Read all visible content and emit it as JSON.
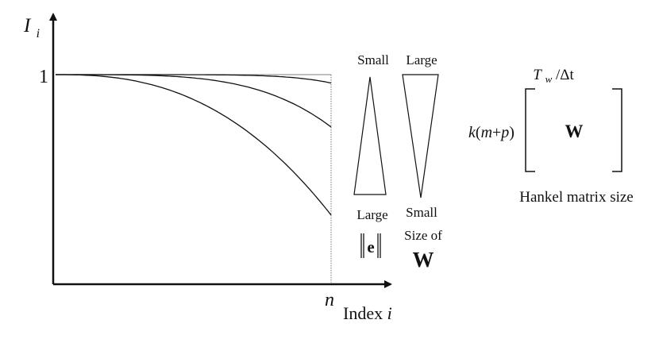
{
  "axes": {
    "y_label_main": "I",
    "y_label_sub": "i",
    "y_tick": "1",
    "x_tick": "n",
    "x_label_text": "Index ",
    "x_label_var": "i"
  },
  "curves": {
    "count": 3,
    "end_values": [
      0.96,
      0.75,
      0.33
    ],
    "y_max": 1
  },
  "triangles": {
    "error_top_label": "Small",
    "error_bottom_label": "Large",
    "error_norm_symbol": "e",
    "window_top_label": "Large",
    "window_bottom_label": "Small",
    "window_size_text": "Size of",
    "window_size_symbol": "W"
  },
  "hankel": {
    "col_label_var": "T",
    "col_label_sub": "w",
    "col_label_rest": "/Δt",
    "row_label_prefix": "k(",
    "row_label_m": "m",
    "row_label_plus": "+",
    "row_label_p": "p",
    "row_label_suffix": ")",
    "matrix_symbol": "W",
    "caption": "Hankel matrix size"
  },
  "colors": {
    "ink": "#111111",
    "guide": "#555555",
    "background": "#ffffff"
  }
}
